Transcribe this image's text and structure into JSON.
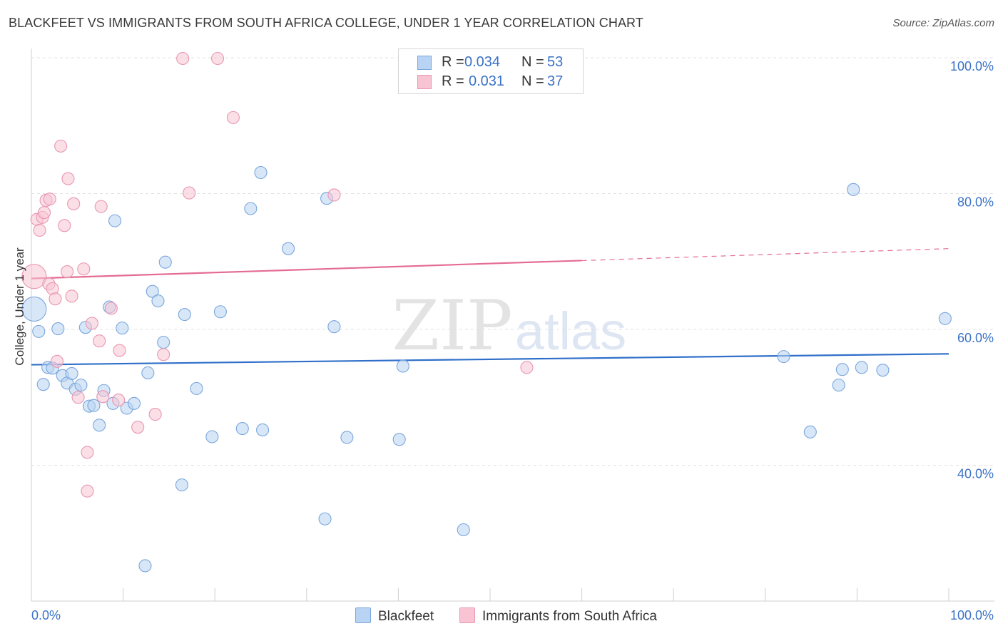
{
  "title": "BLACKFEET VS IMMIGRANTS FROM SOUTH AFRICA COLLEGE, UNDER 1 YEAR CORRELATION CHART",
  "source": "Source: ZipAtlas.com",
  "watermark": {
    "zip": "ZIP",
    "atlas": "atlas"
  },
  "legend_top": {
    "rows": [
      {
        "r_label": "R =",
        "r_value": "0.034",
        "n_label": "N =",
        "n_value": "53"
      },
      {
        "r_label": "R =",
        "r_value": "0.031",
        "n_label": "N =",
        "n_value": "37"
      }
    ]
  },
  "legend_bottom": [
    {
      "label": "Blackfeet"
    },
    {
      "label": "Immigrants from South Africa"
    }
  ],
  "colors": {
    "blue_fill": "#b8d3f3",
    "blue_stroke": "#7aa6dc",
    "blue_line": "#2f6fc9",
    "pink_fill": "#f8c4d4",
    "pink_stroke": "#e896b2",
    "pink_line": "#e46c92",
    "axis_text": "#3b72c6",
    "grid": "#e1e1e1"
  },
  "chart_data": {
    "type": "scatter",
    "title": "BLACKFEET VS IMMIGRANTS FROM SOUTH AFRICA COLLEGE, UNDER 1 YEAR CORRELATION CHART",
    "xlabel": "",
    "ylabel": "College, Under 1 year",
    "xlim": [
      0,
      100
    ],
    "ylim": [
      20,
      102
    ],
    "x_tick_labels": [
      "0.0%",
      "100.0%"
    ],
    "y_tick_labels": [
      "100.0%",
      "80.0%",
      "60.0%",
      "40.0%"
    ],
    "y_ticks": [
      100,
      80,
      60,
      40
    ],
    "series": [
      {
        "name": "Blackfeet",
        "r": 0.034,
        "n": 53,
        "trend": {
          "x": [
            0,
            100
          ],
          "y": [
            54.8,
            56.4
          ],
          "dashed_from": null
        },
        "points": [
          {
            "x": 0.3,
            "y": 63.0,
            "big": true
          },
          {
            "x": 0.8,
            "y": 59.7
          },
          {
            "x": 1.3,
            "y": 51.9
          },
          {
            "x": 1.8,
            "y": 54.4
          },
          {
            "x": 2.3,
            "y": 54.3
          },
          {
            "x": 2.9,
            "y": 60.1
          },
          {
            "x": 3.4,
            "y": 53.2
          },
          {
            "x": 3.9,
            "y": 52.1
          },
          {
            "x": 4.4,
            "y": 53.5
          },
          {
            "x": 4.8,
            "y": 51.2
          },
          {
            "x": 5.4,
            "y": 51.8
          },
          {
            "x": 5.9,
            "y": 60.3
          },
          {
            "x": 6.3,
            "y": 48.7
          },
          {
            "x": 6.8,
            "y": 48.8
          },
          {
            "x": 7.4,
            "y": 45.9
          },
          {
            "x": 7.9,
            "y": 51.0
          },
          {
            "x": 8.5,
            "y": 63.3
          },
          {
            "x": 8.9,
            "y": 49.1
          },
          {
            "x": 9.1,
            "y": 76.0
          },
          {
            "x": 9.9,
            "y": 60.2
          },
          {
            "x": 10.4,
            "y": 48.4
          },
          {
            "x": 11.2,
            "y": 49.1
          },
          {
            "x": 12.4,
            "y": 25.2
          },
          {
            "x": 12.7,
            "y": 53.6
          },
          {
            "x": 13.2,
            "y": 65.6
          },
          {
            "x": 13.8,
            "y": 64.2
          },
          {
            "x": 14.4,
            "y": 58.1
          },
          {
            "x": 14.6,
            "y": 69.9
          },
          {
            "x": 16.4,
            "y": 37.1
          },
          {
            "x": 16.7,
            "y": 62.2
          },
          {
            "x": 18.0,
            "y": 51.3
          },
          {
            "x": 19.7,
            "y": 44.2
          },
          {
            "x": 20.6,
            "y": 62.6
          },
          {
            "x": 23.0,
            "y": 45.4
          },
          {
            "x": 23.9,
            "y": 77.8
          },
          {
            "x": 25.0,
            "y": 83.1
          },
          {
            "x": 25.2,
            "y": 45.2
          },
          {
            "x": 28.0,
            "y": 71.9
          },
          {
            "x": 32.0,
            "y": 32.1
          },
          {
            "x": 32.2,
            "y": 79.3
          },
          {
            "x": 33.0,
            "y": 60.4
          },
          {
            "x": 34.4,
            "y": 44.1
          },
          {
            "x": 40.1,
            "y": 43.8
          },
          {
            "x": 40.5,
            "y": 54.6
          },
          {
            "x": 47.1,
            "y": 30.5
          },
          {
            "x": 82.0,
            "y": 56.0
          },
          {
            "x": 84.9,
            "y": 44.9
          },
          {
            "x": 88.0,
            "y": 51.8
          },
          {
            "x": 88.4,
            "y": 54.1
          },
          {
            "x": 89.6,
            "y": 80.6
          },
          {
            "x": 90.5,
            "y": 54.4
          },
          {
            "x": 92.8,
            "y": 54.0
          },
          {
            "x": 99.6,
            "y": 61.6
          }
        ]
      },
      {
        "name": "Immigrants from South Africa",
        "r": 0.031,
        "n": 37,
        "trend": {
          "x": [
            0,
            100
          ],
          "y": [
            67.5,
            71.9
          ],
          "dashed_from": 60
        },
        "points": [
          {
            "x": 0.3,
            "y": 67.8,
            "big": true
          },
          {
            "x": 0.6,
            "y": 76.2
          },
          {
            "x": 0.9,
            "y": 74.6
          },
          {
            "x": 1.2,
            "y": 76.5
          },
          {
            "x": 1.4,
            "y": 77.2
          },
          {
            "x": 1.6,
            "y": 79.0
          },
          {
            "x": 1.9,
            "y": 66.7
          },
          {
            "x": 2.0,
            "y": 79.2
          },
          {
            "x": 2.3,
            "y": 66.0
          },
          {
            "x": 2.6,
            "y": 64.5
          },
          {
            "x": 2.8,
            "y": 55.3
          },
          {
            "x": 3.2,
            "y": 87.0
          },
          {
            "x": 3.6,
            "y": 75.3
          },
          {
            "x": 3.9,
            "y": 68.5
          },
          {
            "x": 4.0,
            "y": 82.2
          },
          {
            "x": 4.4,
            "y": 64.9
          },
          {
            "x": 4.6,
            "y": 78.5
          },
          {
            "x": 5.1,
            "y": 50.0
          },
          {
            "x": 5.7,
            "y": 68.9
          },
          {
            "x": 6.1,
            "y": 41.9
          },
          {
            "x": 6.1,
            "y": 36.2
          },
          {
            "x": 6.6,
            "y": 60.9
          },
          {
            "x": 7.4,
            "y": 58.3
          },
          {
            "x": 7.6,
            "y": 78.1
          },
          {
            "x": 7.8,
            "y": 50.1
          },
          {
            "x": 8.7,
            "y": 63.1
          },
          {
            "x": 9.5,
            "y": 49.6
          },
          {
            "x": 9.6,
            "y": 56.9
          },
          {
            "x": 11.6,
            "y": 45.6
          },
          {
            "x": 13.5,
            "y": 47.5
          },
          {
            "x": 14.4,
            "y": 56.3
          },
          {
            "x": 16.5,
            "y": 99.9
          },
          {
            "x": 17.2,
            "y": 80.1
          },
          {
            "x": 20.3,
            "y": 99.9
          },
          {
            "x": 22.0,
            "y": 91.2
          },
          {
            "x": 33.0,
            "y": 79.8
          },
          {
            "x": 54.0,
            "y": 54.4
          }
        ]
      }
    ]
  }
}
